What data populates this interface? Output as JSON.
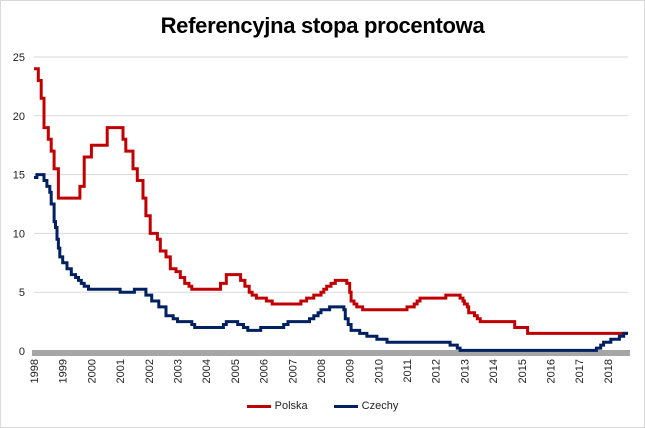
{
  "chart_data": {
    "type": "line",
    "title": "Referencyjna stopa procentowa",
    "xlabel": "",
    "ylabel": "",
    "xlim": [
      1998,
      2018.7
    ],
    "ylim": [
      0,
      25
    ],
    "yticks": [
      0,
      5,
      10,
      15,
      20,
      25
    ],
    "xticks": [
      "1998",
      "1999",
      "2000",
      "2001",
      "2002",
      "2003",
      "2004",
      "2005",
      "2006",
      "2007",
      "2008",
      "2009",
      "2010",
      "2011",
      "2012",
      "2013",
      "2014",
      "2015",
      "2016",
      "2017",
      "2018"
    ],
    "grid": "horizontal",
    "legend": "bottom",
    "series": [
      {
        "name": "Polska",
        "color": "#c00000",
        "points": [
          [
            1998.0,
            24
          ],
          [
            1998.15,
            24
          ],
          [
            1998.15,
            23
          ],
          [
            1998.25,
            23
          ],
          [
            1998.25,
            21.5
          ],
          [
            1998.35,
            21.5
          ],
          [
            1998.35,
            19
          ],
          [
            1998.5,
            19
          ],
          [
            1998.5,
            18
          ],
          [
            1998.6,
            18
          ],
          [
            1998.6,
            17
          ],
          [
            1998.7,
            17
          ],
          [
            1998.7,
            15.5
          ],
          [
            1998.85,
            15.5
          ],
          [
            1998.85,
            13
          ],
          [
            1999.6,
            13
          ],
          [
            1999.6,
            14
          ],
          [
            1999.75,
            14
          ],
          [
            1999.75,
            16.5
          ],
          [
            2000.0,
            16.5
          ],
          [
            2000.0,
            17.5
          ],
          [
            2000.55,
            17.5
          ],
          [
            2000.55,
            19
          ],
          [
            2001.1,
            19
          ],
          [
            2001.1,
            18
          ],
          [
            2001.2,
            18
          ],
          [
            2001.2,
            17
          ],
          [
            2001.45,
            17
          ],
          [
            2001.45,
            15.5
          ],
          [
            2001.6,
            15.5
          ],
          [
            2001.6,
            14.5
          ],
          [
            2001.8,
            14.5
          ],
          [
            2001.8,
            13
          ],
          [
            2001.9,
            13
          ],
          [
            2001.9,
            11.5
          ],
          [
            2002.05,
            11.5
          ],
          [
            2002.05,
            10
          ],
          [
            2002.3,
            10
          ],
          [
            2002.3,
            9.5
          ],
          [
            2002.4,
            9.5
          ],
          [
            2002.4,
            8.5
          ],
          [
            2002.6,
            8.5
          ],
          [
            2002.6,
            8
          ],
          [
            2002.75,
            8
          ],
          [
            2002.75,
            7
          ],
          [
            2002.95,
            7
          ],
          [
            2002.95,
            6.75
          ],
          [
            2003.1,
            6.75
          ],
          [
            2003.1,
            6.25
          ],
          [
            2003.25,
            6.25
          ],
          [
            2003.25,
            5.75
          ],
          [
            2003.4,
            5.75
          ],
          [
            2003.4,
            5.5
          ],
          [
            2003.5,
            5.5
          ],
          [
            2003.5,
            5.25
          ],
          [
            2004.5,
            5.25
          ],
          [
            2004.5,
            5.75
          ],
          [
            2004.7,
            5.75
          ],
          [
            2004.7,
            6.5
          ],
          [
            2005.2,
            6.5
          ],
          [
            2005.2,
            6
          ],
          [
            2005.35,
            6
          ],
          [
            2005.35,
            5.5
          ],
          [
            2005.5,
            5.5
          ],
          [
            2005.5,
            5
          ],
          [
            2005.6,
            5
          ],
          [
            2005.6,
            4.75
          ],
          [
            2005.75,
            4.75
          ],
          [
            2005.75,
            4.5
          ],
          [
            2006.1,
            4.5
          ],
          [
            2006.1,
            4.25
          ],
          [
            2006.3,
            4.25
          ],
          [
            2006.3,
            4
          ],
          [
            2007.3,
            4
          ],
          [
            2007.3,
            4.25
          ],
          [
            2007.5,
            4.25
          ],
          [
            2007.5,
            4.5
          ],
          [
            2007.75,
            4.5
          ],
          [
            2007.75,
            4.75
          ],
          [
            2008.0,
            4.75
          ],
          [
            2008.0,
            5
          ],
          [
            2008.1,
            5
          ],
          [
            2008.1,
            5.25
          ],
          [
            2008.2,
            5.25
          ],
          [
            2008.2,
            5.5
          ],
          [
            2008.35,
            5.5
          ],
          [
            2008.35,
            5.75
          ],
          [
            2008.5,
            5.75
          ],
          [
            2008.5,
            6
          ],
          [
            2008.9,
            6
          ],
          [
            2008.9,
            5.75
          ],
          [
            2009.0,
            5.75
          ],
          [
            2009.0,
            5
          ],
          [
            2009.05,
            5
          ],
          [
            2009.05,
            4.25
          ],
          [
            2009.15,
            4.25
          ],
          [
            2009.15,
            4
          ],
          [
            2009.25,
            4
          ],
          [
            2009.25,
            3.75
          ],
          [
            2009.45,
            3.75
          ],
          [
            2009.45,
            3.5
          ],
          [
            2011.0,
            3.5
          ],
          [
            2011.0,
            3.75
          ],
          [
            2011.25,
            3.75
          ],
          [
            2011.25,
            4
          ],
          [
            2011.35,
            4
          ],
          [
            2011.35,
            4.25
          ],
          [
            2011.45,
            4.25
          ],
          [
            2011.45,
            4.5
          ],
          [
            2012.35,
            4.5
          ],
          [
            2012.35,
            4.75
          ],
          [
            2012.85,
            4.75
          ],
          [
            2012.85,
            4.5
          ],
          [
            2012.95,
            4.5
          ],
          [
            2012.95,
            4.25
          ],
          [
            2013.0,
            4.25
          ],
          [
            2013.0,
            4
          ],
          [
            2013.1,
            4
          ],
          [
            2013.1,
            3.75
          ],
          [
            2013.15,
            3.75
          ],
          [
            2013.15,
            3.25
          ],
          [
            2013.35,
            3.25
          ],
          [
            2013.35,
            3
          ],
          [
            2013.45,
            3
          ],
          [
            2013.45,
            2.75
          ],
          [
            2013.55,
            2.75
          ],
          [
            2013.55,
            2.5
          ],
          [
            2014.75,
            2.5
          ],
          [
            2014.75,
            2
          ],
          [
            2015.2,
            2
          ],
          [
            2015.2,
            1.5
          ],
          [
            2018.7,
            1.5
          ]
        ]
      },
      {
        "name": "Czechy",
        "color": "#002060",
        "points": [
          [
            1998.0,
            14.75
          ],
          [
            1998.1,
            14.75
          ],
          [
            1998.1,
            15
          ],
          [
            1998.35,
            15
          ],
          [
            1998.35,
            14.5
          ],
          [
            1998.45,
            14.5
          ],
          [
            1998.45,
            14
          ],
          [
            1998.55,
            14
          ],
          [
            1998.55,
            13.5
          ],
          [
            1998.6,
            13.5
          ],
          [
            1998.6,
            12.5
          ],
          [
            1998.7,
            12.5
          ],
          [
            1998.7,
            11
          ],
          [
            1998.75,
            11
          ],
          [
            1998.75,
            10.5
          ],
          [
            1998.8,
            10.5
          ],
          [
            1998.8,
            9.5
          ],
          [
            1998.85,
            9.5
          ],
          [
            1998.85,
            8.75
          ],
          [
            1998.9,
            8.75
          ],
          [
            1998.9,
            8
          ],
          [
            1999.0,
            8
          ],
          [
            1999.0,
            7.5
          ],
          [
            1999.15,
            7.5
          ],
          [
            1999.15,
            7
          ],
          [
            1999.3,
            7
          ],
          [
            1999.3,
            6.5
          ],
          [
            1999.45,
            6.5
          ],
          [
            1999.45,
            6.25
          ],
          [
            1999.55,
            6.25
          ],
          [
            1999.55,
            6
          ],
          [
            1999.65,
            6
          ],
          [
            1999.65,
            5.75
          ],
          [
            1999.75,
            5.75
          ],
          [
            1999.75,
            5.5
          ],
          [
            1999.9,
            5.5
          ],
          [
            1999.9,
            5.25
          ],
          [
            2001.0,
            5.25
          ],
          [
            2001.0,
            5
          ],
          [
            2001.5,
            5
          ],
          [
            2001.5,
            5.25
          ],
          [
            2001.9,
            5.25
          ],
          [
            2001.9,
            4.75
          ],
          [
            2002.1,
            4.75
          ],
          [
            2002.1,
            4.25
          ],
          [
            2002.35,
            4.25
          ],
          [
            2002.35,
            3.75
          ],
          [
            2002.6,
            3.75
          ],
          [
            2002.6,
            3
          ],
          [
            2002.85,
            3
          ],
          [
            2002.85,
            2.75
          ],
          [
            2003.0,
            2.75
          ],
          [
            2003.0,
            2.5
          ],
          [
            2003.5,
            2.5
          ],
          [
            2003.5,
            2.25
          ],
          [
            2003.6,
            2.25
          ],
          [
            2003.6,
            2
          ],
          [
            2004.6,
            2
          ],
          [
            2004.6,
            2.25
          ],
          [
            2004.7,
            2.25
          ],
          [
            2004.7,
            2.5
          ],
          [
            2005.1,
            2.5
          ],
          [
            2005.1,
            2.25
          ],
          [
            2005.3,
            2.25
          ],
          [
            2005.3,
            2
          ],
          [
            2005.45,
            2
          ],
          [
            2005.45,
            1.75
          ],
          [
            2005.9,
            1.75
          ],
          [
            2005.9,
            2
          ],
          [
            2006.7,
            2
          ],
          [
            2006.7,
            2.25
          ],
          [
            2006.85,
            2.25
          ],
          [
            2006.85,
            2.5
          ],
          [
            2007.6,
            2.5
          ],
          [
            2007.6,
            2.75
          ],
          [
            2007.75,
            2.75
          ],
          [
            2007.75,
            3
          ],
          [
            2007.9,
            3
          ],
          [
            2007.9,
            3.25
          ],
          [
            2008.0,
            3.25
          ],
          [
            2008.0,
            3.5
          ],
          [
            2008.3,
            3.5
          ],
          [
            2008.3,
            3.75
          ],
          [
            2008.8,
            3.75
          ],
          [
            2008.8,
            3.5
          ],
          [
            2008.85,
            3.5
          ],
          [
            2008.85,
            2.75
          ],
          [
            2008.95,
            2.75
          ],
          [
            2008.95,
            2.25
          ],
          [
            2009.05,
            2.25
          ],
          [
            2009.05,
            1.75
          ],
          [
            2009.35,
            1.75
          ],
          [
            2009.35,
            1.5
          ],
          [
            2009.6,
            1.5
          ],
          [
            2009.6,
            1.25
          ],
          [
            2009.95,
            1.25
          ],
          [
            2009.95,
            1
          ],
          [
            2010.3,
            1
          ],
          [
            2010.3,
            0.75
          ],
          [
            2012.5,
            0.75
          ],
          [
            2012.5,
            0.5
          ],
          [
            2012.75,
            0.5
          ],
          [
            2012.75,
            0.25
          ],
          [
            2012.85,
            0.25
          ],
          [
            2012.85,
            0.05
          ],
          [
            2017.6,
            0.05
          ],
          [
            2017.6,
            0.25
          ],
          [
            2017.75,
            0.25
          ],
          [
            2017.75,
            0.5
          ],
          [
            2017.85,
            0.5
          ],
          [
            2017.85,
            0.75
          ],
          [
            2018.1,
            0.75
          ],
          [
            2018.1,
            1
          ],
          [
            2018.4,
            1
          ],
          [
            2018.4,
            1.25
          ],
          [
            2018.55,
            1.25
          ],
          [
            2018.55,
            1.5
          ],
          [
            2018.7,
            1.5
          ]
        ]
      }
    ]
  }
}
